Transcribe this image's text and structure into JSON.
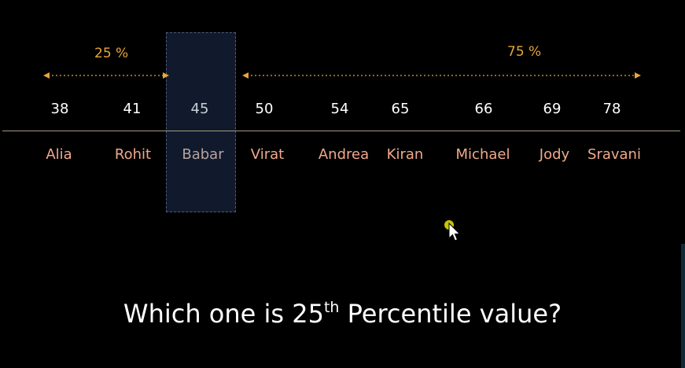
{
  "labels": {
    "lower_pct": "25 %",
    "upper_pct": "75 %"
  },
  "values": [
    "38",
    "41",
    "45",
    "50",
    "54",
    "65",
    "66",
    "69",
    "78"
  ],
  "names": [
    "Alia",
    "Rohit",
    "Babar",
    "Virat",
    "Andrea",
    "Kiran",
    "Michael",
    "Jody",
    "Sravani"
  ],
  "highlighted_index": 2,
  "question": {
    "prefix": "Which one is 25",
    "superscript": "th",
    "suffix": " Percentile value?"
  },
  "colors": {
    "background": "#000000",
    "accent": "#e8a53a",
    "names": "#f0a98c",
    "highlight": "#101a2c"
  }
}
